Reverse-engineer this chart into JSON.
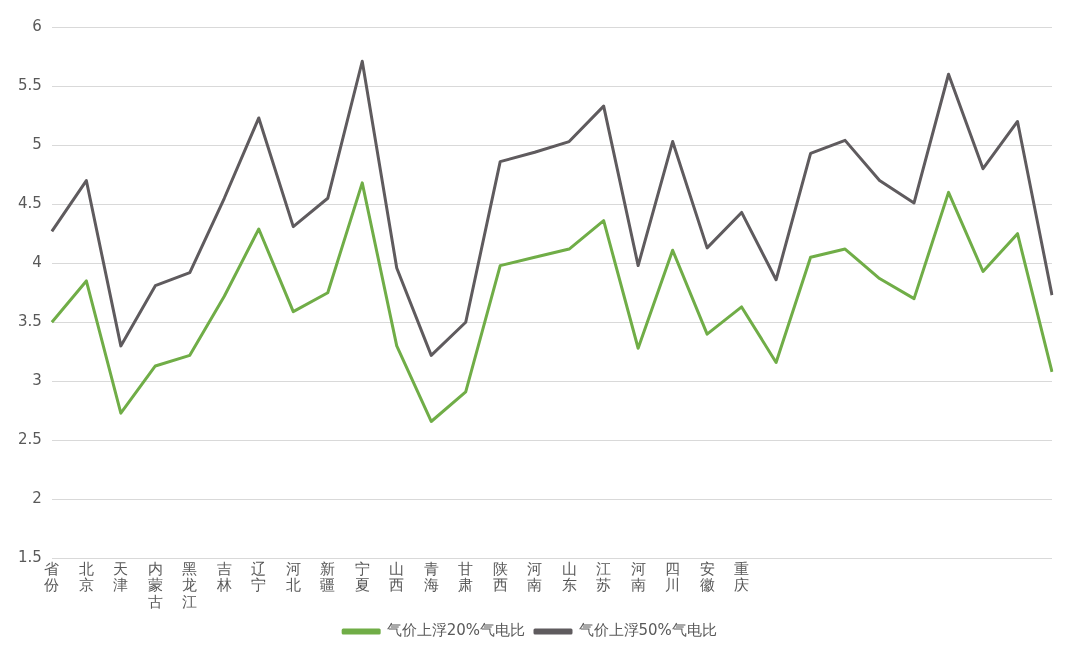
{
  "chart_data": {
    "type": "line",
    "categories": [
      "省份",
      "北京",
      "天津",
      "内蒙古",
      "黑龙江",
      "吉林",
      "辽宁",
      "河北",
      "新疆",
      "宁夏",
      "山西",
      "青海",
      "甘肃",
      "陕西",
      "河南",
      "山东",
      "江苏",
      "河南",
      "四川",
      "安徽",
      "重庆",
      null,
      null,
      null,
      null,
      null,
      null,
      null,
      null,
      null
    ],
    "series": [
      {
        "name": "气价上浮20%气电比",
        "color": "#70ad47",
        "values": [
          3.5,
          3.85,
          2.73,
          3.13,
          3.22,
          3.72,
          4.29,
          3.59,
          3.75,
          4.68,
          3.3,
          2.66,
          2.91,
          3.98,
          4.05,
          4.12,
          4.36,
          3.28,
          4.11,
          3.4,
          3.63,
          3.16,
          4.05,
          4.12,
          3.87,
          3.7,
          4.6,
          3.93,
          4.25,
          3.08
        ]
      },
      {
        "name": "气价上浮50%气电比",
        "color": "#5f5b5e",
        "values": [
          4.27,
          4.7,
          3.3,
          3.81,
          3.92,
          4.55,
          5.23,
          4.31,
          4.55,
          5.71,
          3.96,
          3.22,
          3.5,
          4.86,
          4.94,
          5.03,
          5.33,
          3.98,
          5.03,
          4.13,
          4.43,
          3.86,
          4.93,
          5.04,
          4.7,
          4.51,
          5.6,
          4.8,
          5.2,
          3.73
        ]
      }
    ],
    "ylim": [
      1.5,
      6
    ],
    "yticks": [
      1.5,
      2,
      2.5,
      3,
      3.5,
      4,
      4.5,
      5,
      5.5,
      6
    ],
    "grid": "y",
    "legend": "bottom",
    "marker": "none",
    "line_style": "solid"
  }
}
